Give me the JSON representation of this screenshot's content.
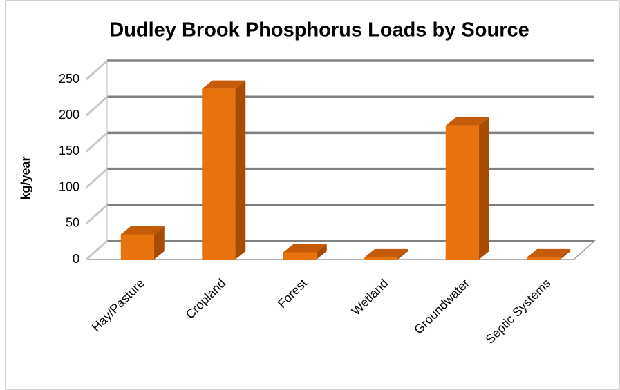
{
  "chart_data": {
    "type": "bar3d",
    "title": "Dudley Brook Phosphorus Loads by Source",
    "y_label": "kg/year",
    "categories": [
      "Hay/Pasture",
      "Cropland",
      "Forest",
      "Wetland",
      "Groundwater",
      "Septic Systems"
    ],
    "values": [
      35,
      237,
      10,
      3,
      186,
      3
    ],
    "color": "#e8720c",
    "ylim": [
      0,
      250
    ],
    "yticks": [
      0,
      50,
      100,
      150,
      200,
      250
    ],
    "grid": true
  }
}
